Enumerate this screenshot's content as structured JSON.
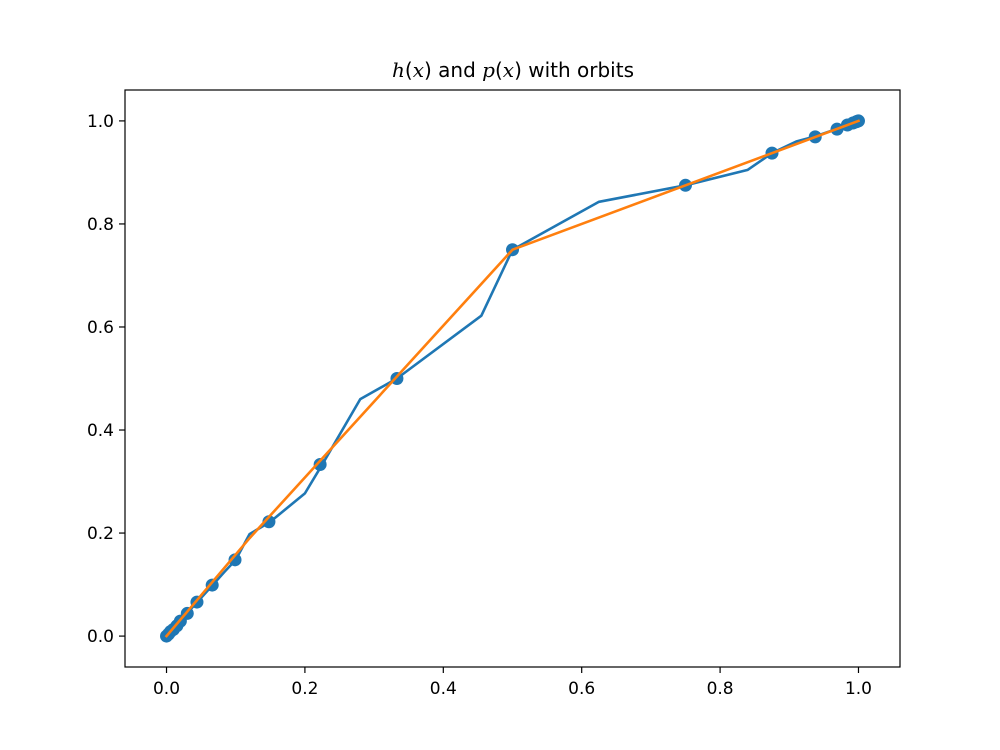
{
  "chart_data": {
    "type": "line",
    "title": {
      "parts": [
        {
          "text": "h",
          "italic": true
        },
        {
          "text": "(",
          "italic": false
        },
        {
          "text": "x",
          "italic": true
        },
        {
          "text": ") and ",
          "italic": false
        },
        {
          "text": "p",
          "italic": true
        },
        {
          "text": "(",
          "italic": false
        },
        {
          "text": "x",
          "italic": true
        },
        {
          "text": ") with orbits",
          "italic": false
        }
      ]
    },
    "xlabel": "",
    "ylabel": "",
    "xlim": [
      -0.06,
      1.06
    ],
    "ylim": [
      -0.06,
      1.06
    ],
    "x_ticks": [
      {
        "value": 0.0,
        "label": "0.0"
      },
      {
        "value": 0.2,
        "label": "0.2"
      },
      {
        "value": 0.4,
        "label": "0.4"
      },
      {
        "value": 0.6,
        "label": "0.6"
      },
      {
        "value": 0.8,
        "label": "0.8"
      },
      {
        "value": 1.0,
        "label": "1.0"
      }
    ],
    "y_ticks": [
      {
        "value": 0.0,
        "label": "0.0"
      },
      {
        "value": 0.2,
        "label": "0.2"
      },
      {
        "value": 0.4,
        "label": "0.4"
      },
      {
        "value": 0.6,
        "label": "0.6"
      },
      {
        "value": 0.8,
        "label": "0.8"
      },
      {
        "value": 1.0,
        "label": "1.0"
      }
    ],
    "grid": false,
    "series": [
      {
        "type": "line",
        "color": "#1f77b4",
        "x": [
          0,
          0.012,
          0.03,
          0.045,
          0.066,
          0.084,
          0.1,
          0.12,
          0.15,
          0.2,
          0.225,
          0.28,
          0.333,
          0.455,
          0.5,
          0.625,
          0.75,
          0.84,
          0.875,
          0.91,
          0.9375,
          0.97,
          0.985,
          1.0
        ],
        "y": [
          0,
          0.02,
          0.045,
          0.067,
          0.098,
          0.125,
          0.148,
          0.198,
          0.222,
          0.277,
          0.333,
          0.46,
          0.5,
          0.622,
          0.75,
          0.843,
          0.875,
          0.905,
          0.9375,
          0.96,
          0.97,
          0.985,
          0.99,
          1.0
        ]
      },
      {
        "type": "line",
        "color": "#ff7f0e",
        "x": [
          0,
          0.12,
          0.5,
          1.0
        ],
        "y": [
          0,
          0.19,
          0.75,
          1.0
        ]
      },
      {
        "type": "scatter",
        "color": "#1f77b4",
        "x": [
          0,
          0.003,
          0.006,
          0.01,
          0.015,
          0.02,
          0.03,
          0.044,
          0.066,
          0.099,
          0.148,
          0.222,
          0.333,
          0.5,
          0.75,
          0.875,
          0.9375,
          0.969,
          0.984,
          0.992,
          0.996,
          0.998,
          1.0
        ],
        "y": [
          0,
          0.004,
          0.009,
          0.013,
          0.02,
          0.029,
          0.044,
          0.066,
          0.099,
          0.148,
          0.222,
          0.333,
          0.5,
          0.75,
          0.875,
          0.9375,
          0.969,
          0.984,
          0.992,
          0.996,
          0.998,
          0.999,
          1.0
        ]
      }
    ]
  }
}
